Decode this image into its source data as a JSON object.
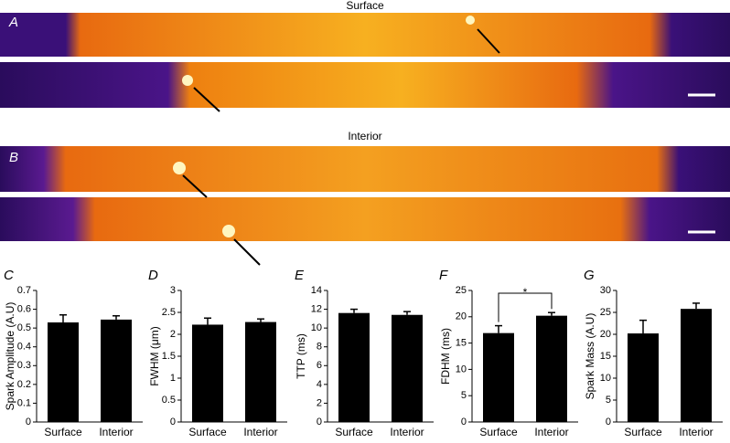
{
  "panels": [
    {
      "label": "A",
      "title": "Surface"
    },
    {
      "label": "B",
      "title": "Interior"
    }
  ],
  "chart_data": [
    {
      "type": "bar",
      "panel": "C",
      "ylabel": "Spark Amplitude (A.U)",
      "categories": [
        "Surface",
        "Interior"
      ],
      "series": [
        {
          "color": "#000000",
          "values": [
            0.53,
            0.545
          ],
          "errors": [
            0.04,
            0.02
          ]
        }
      ],
      "ylim": [
        0,
        0.7
      ],
      "yticks": [
        0,
        0.1,
        0.2,
        0.3,
        0.4,
        0.5,
        0.6,
        0.7
      ]
    },
    {
      "type": "bar",
      "panel": "D",
      "ylabel": "FWHM (μm)",
      "categories": [
        "Surface",
        "Interior"
      ],
      "series": [
        {
          "color": "#000000",
          "values": [
            2.22,
            2.28
          ],
          "errors": [
            0.15,
            0.07
          ]
        }
      ],
      "ylim": [
        0,
        3
      ],
      "yticks": [
        0,
        0.5,
        1,
        1.5,
        2,
        2.5,
        3
      ]
    },
    {
      "type": "bar",
      "panel": "E",
      "ylabel": "TTP (ms)",
      "categories": [
        "Surface",
        "Interior"
      ],
      "series": [
        {
          "color": "#000000",
          "values": [
            11.6,
            11.4
          ],
          "errors": [
            0.4,
            0.35
          ]
        }
      ],
      "ylim": [
        0,
        14
      ],
      "yticks": [
        0,
        2,
        4,
        6,
        8,
        10,
        12,
        14
      ]
    },
    {
      "type": "bar",
      "panel": "F",
      "ylabel": "FDHM (ms)",
      "annotation": "*",
      "categories": [
        "Surface",
        "Interior"
      ],
      "series": [
        {
          "color": "#000000",
          "values": [
            16.9,
            20.2
          ],
          "errors": [
            1.4,
            0.6
          ]
        }
      ],
      "ylim": [
        0,
        25
      ],
      "yticks": [
        0,
        5,
        10,
        15,
        20,
        25
      ]
    },
    {
      "type": "bar",
      "panel": "G",
      "ylabel": "Spark Mass (A.U)",
      "categories": [
        "Surface",
        "Interior"
      ],
      "series": [
        {
          "color": "#000000",
          "values": [
            20.2,
            25.8
          ],
          "errors": [
            3.0,
            1.3
          ]
        }
      ],
      "ylim": [
        0,
        30
      ],
      "yticks": [
        0,
        5,
        10,
        15,
        20,
        25,
        30
      ]
    }
  ]
}
